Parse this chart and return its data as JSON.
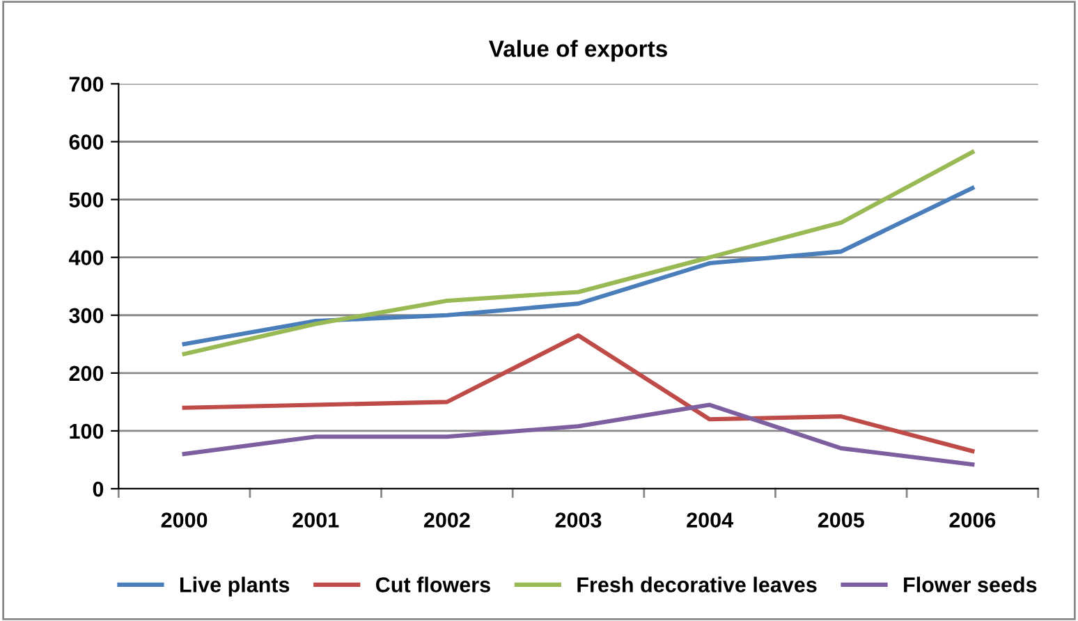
{
  "chart_data": {
    "type": "line",
    "title": "Value of exports",
    "categories": [
      "2000",
      "2001",
      "2002",
      "2003",
      "2004",
      "2005",
      "2006"
    ],
    "series": [
      {
        "name": "Live plants",
        "color": "#4a7ebb",
        "values": [
          250,
          290,
          300,
          320,
          390,
          410,
          520
        ]
      },
      {
        "name": "Cut flowers",
        "color": "#be4b48",
        "values": [
          140,
          145,
          150,
          265,
          120,
          125,
          65
        ]
      },
      {
        "name": "Fresh decorative leaves",
        "color": "#98b954",
        "values": [
          233,
          285,
          325,
          340,
          400,
          460,
          582
        ]
      },
      {
        "name": "Flower seeds",
        "color": "#7d5fa0",
        "values": [
          60,
          90,
          90,
          108,
          145,
          70,
          42
        ]
      }
    ],
    "ylim": [
      0,
      700
    ],
    "yticks": [
      0,
      100,
      200,
      300,
      400,
      500,
      600,
      700
    ],
    "grid": "y",
    "legend": "bottom",
    "marker": "none",
    "line_style": "solid"
  }
}
